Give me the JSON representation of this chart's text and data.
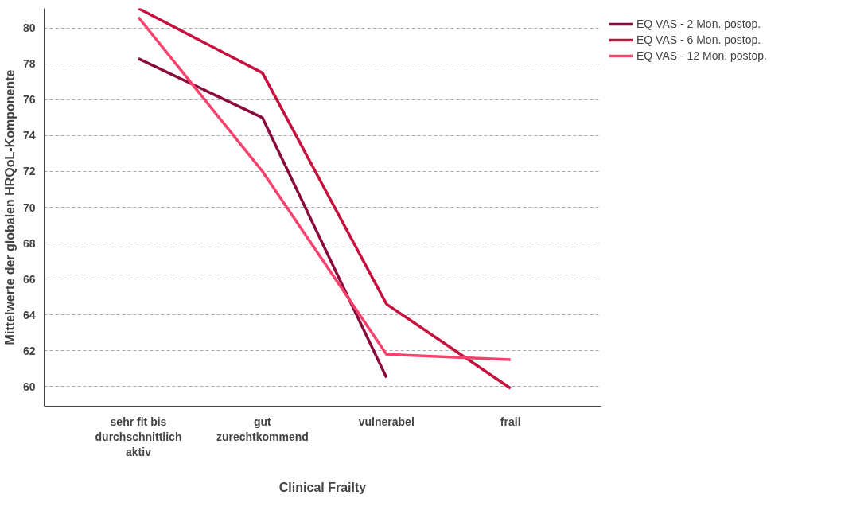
{
  "chart_data": {
    "type": "line",
    "xlabel": "Clinical Frailty",
    "ylabel": "Mittelwerte der globalen HRQoL-Komponente",
    "categories": [
      "sehr fit bis\ndurchschnittlich\naktiv",
      "gut\nzurechtkommend",
      "vulnerabel",
      "frail"
    ],
    "series": [
      {
        "name": "EQ VAS - 2 Mon. postop.",
        "color": "#8b0a3c",
        "values": [
          78.3,
          75.0,
          60.5,
          null
        ]
      },
      {
        "name": "EQ VAS - 6 Mon. postop.",
        "color": "#c8103f",
        "values": [
          81.1,
          77.5,
          64.6,
          59.9
        ]
      },
      {
        "name": "EQ VAS - 12 Mon. postop.",
        "color": "#f7426e",
        "values": [
          80.6,
          72.0,
          61.8,
          61.5
        ]
      }
    ],
    "ylim": [
      58.9,
      81.1
    ],
    "yticks": [
      60,
      62,
      64,
      66,
      68,
      70,
      72,
      74,
      76,
      78,
      80
    ],
    "grid": "y",
    "legend": "top right",
    "marker": "none",
    "line_style": "solid"
  }
}
